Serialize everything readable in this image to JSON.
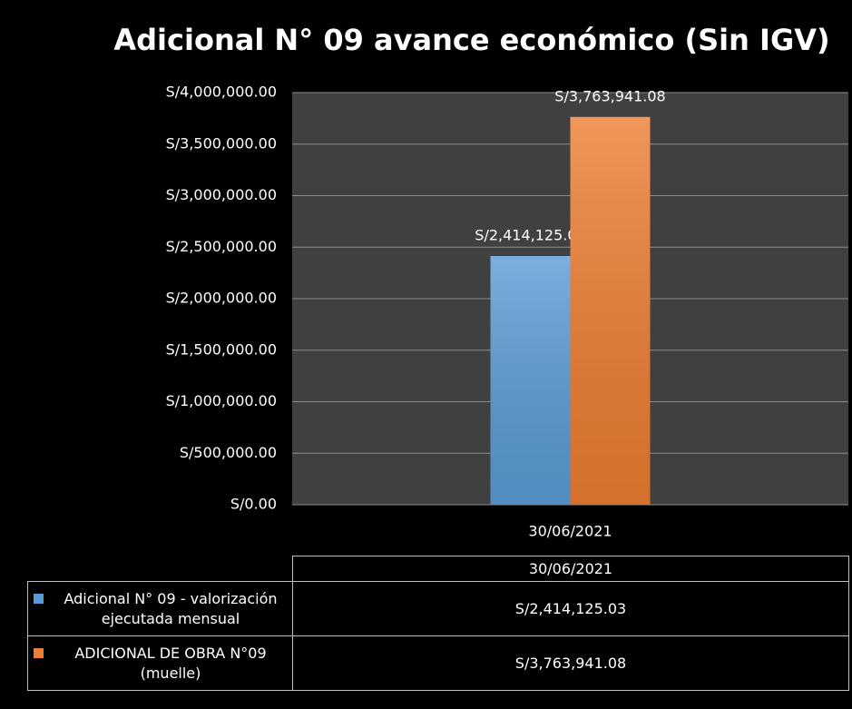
{
  "chart_data": {
    "type": "bar",
    "title": "Adicional N° 09 avance económico (Sin IGV)",
    "categories": [
      "30/06/2021"
    ],
    "series": [
      {
        "name": "Adicional N° 09 - valorización ejecutada mensual",
        "color": "#5b9bd5",
        "values": [
          2414125.03
        ],
        "value_labels": [
          "S/2,414,125.03"
        ]
      },
      {
        "name": "ADICIONAL DE OBRA N°09 (muelle)",
        "color": "#ed7d31",
        "values": [
          3763941.08
        ],
        "value_labels": [
          "S/3,763,941.08"
        ]
      }
    ],
    "ylim": [
      0,
      4000000
    ],
    "yticks": [
      {
        "value": 0,
        "label": "S/0.00"
      },
      {
        "value": 500000,
        "label": "S/500,000.00"
      },
      {
        "value": 1000000,
        "label": "S/1,000,000.00"
      },
      {
        "value": 1500000,
        "label": "S/1,500,000.00"
      },
      {
        "value": 2000000,
        "label": "S/2,000,000.00"
      },
      {
        "value": 2500000,
        "label": "S/2,500,000.00"
      },
      {
        "value": 3000000,
        "label": "S/3,000,000.00"
      },
      {
        "value": 3500000,
        "label": "S/3,500,000.00"
      },
      {
        "value": 4000000,
        "label": "S/4,000,000.00"
      }
    ],
    "grid": true
  }
}
